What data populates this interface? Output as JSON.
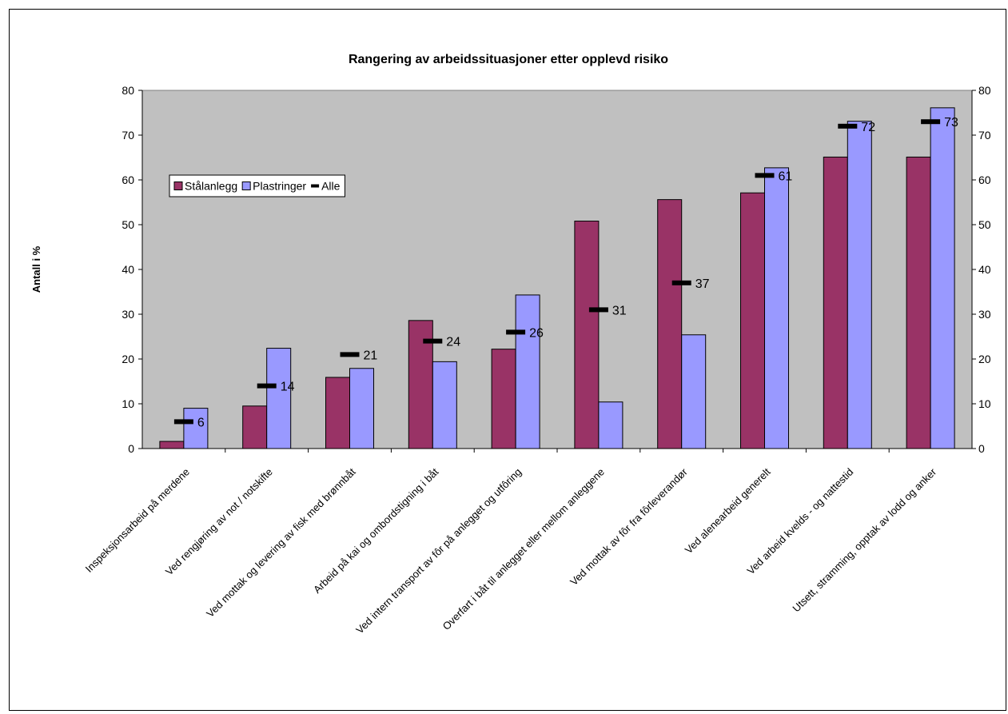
{
  "chart_data": {
    "type": "bar",
    "title": "Rangering av arbeidssituasjoner etter opplevd risiko",
    "xlabel": "",
    "ylabel": "Antall i %",
    "ylim": [
      0,
      80
    ],
    "yticks": [
      0,
      10,
      20,
      30,
      40,
      50,
      60,
      70,
      80
    ],
    "y2ticks": [
      0,
      10,
      20,
      30,
      40,
      50,
      60,
      70,
      80
    ],
    "grid": false,
    "legend_position": "left",
    "categories": [
      "Inspeksjonsarbeid på merdene",
      "Ved rengjøring av not / notskifte",
      "Ved mottak og levering av fisk med brønnbåt",
      "Arbeid på kai og ombordstigning i båt",
      "Ved intern transport av fôr på anlegget og utfôring",
      "Overfart i båt til anlegget eller mellom anleggene",
      "Ved mottak av fôr fra fôrleverandør",
      "Ved alenearbeid generelt",
      "Ved arbeid kvelds - og nattestid",
      "Utsett, stramming, opptak av lodd og anker"
    ],
    "series": [
      {
        "name": "Stålanlegg",
        "type": "bar",
        "color": "#993366",
        "values": [
          1.6,
          9.5,
          15.9,
          28.6,
          22.2,
          50.8,
          55.6,
          57.1,
          65.1,
          65.1
        ]
      },
      {
        "name": "Plastringer",
        "type": "bar",
        "color": "#9999ff",
        "values": [
          9.0,
          22.4,
          17.9,
          19.4,
          34.3,
          10.4,
          25.4,
          62.7,
          73.1,
          76.1
        ]
      },
      {
        "name": "Alle",
        "type": "marker",
        "color": "#000000",
        "values": [
          6,
          14,
          21,
          24,
          26,
          31,
          37,
          61,
          72,
          73
        ],
        "labels": [
          "6",
          "14",
          "21",
          "24",
          "26",
          "31",
          "37",
          "61",
          "72",
          "73"
        ]
      }
    ]
  }
}
